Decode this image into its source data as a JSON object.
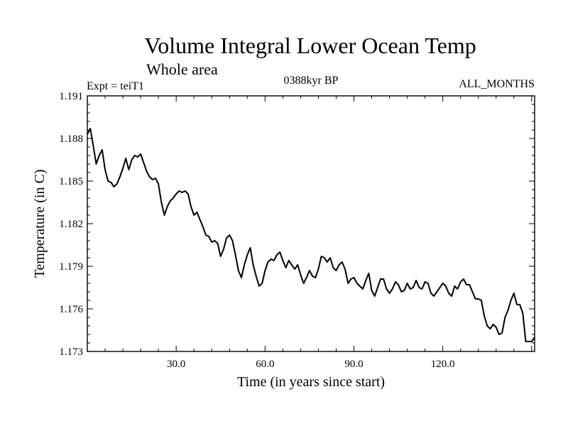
{
  "chart_data": {
    "type": "line",
    "title": "Volume Integral Lower Ocean Temp",
    "subtitle": "Whole area",
    "left_label": "Expt = teiT1",
    "center_label": "0388kyr BP",
    "right_label": "ALL_MONTHS",
    "xlabel": "Time (in years since start)",
    "ylabel": "Temperature (in C)",
    "xlim": [
      0,
      151
    ],
    "ylim": [
      1.173,
      1.191
    ],
    "x_ticks": [
      30,
      60,
      90,
      120
    ],
    "x_tick_labels": [
      "30.0",
      "60.0",
      "90.0",
      "120.0"
    ],
    "y_ticks": [
      1.173,
      1.176,
      1.179,
      1.182,
      1.185,
      1.188,
      1.191
    ],
    "y_tick_labels": [
      "1.173",
      "1.176",
      "1.179",
      "1.182",
      "1.185",
      "1.188",
      "1.191"
    ],
    "grid": false,
    "series": [
      {
        "name": "Volume integral lower ocean temperature",
        "color": "#000000",
        "x": [
          0,
          1,
          2,
          3,
          4,
          5,
          6,
          7,
          8,
          9,
          10,
          11,
          12,
          13,
          14,
          15,
          16,
          17,
          18,
          19,
          20,
          21,
          22,
          23,
          24,
          25,
          26,
          27,
          28,
          29,
          30,
          31,
          32,
          33,
          34,
          35,
          36,
          37,
          38,
          39,
          40,
          41,
          42,
          43,
          44,
          45,
          46,
          47,
          48,
          49,
          50,
          51,
          52,
          53,
          54,
          55,
          56,
          57,
          58,
          59,
          60,
          61,
          62,
          63,
          64,
          65,
          66,
          67,
          68,
          69,
          70,
          71,
          72,
          73,
          74,
          75,
          76,
          77,
          78,
          79,
          80,
          81,
          82,
          83,
          84,
          85,
          86,
          87,
          88,
          89,
          90,
          91,
          92,
          93,
          94,
          95,
          96,
          97,
          98,
          99,
          100,
          101,
          102,
          103,
          104,
          105,
          106,
          107,
          108,
          109,
          110,
          111,
          112,
          113,
          114,
          115,
          116,
          117,
          118,
          119,
          120,
          121,
          122,
          123,
          124,
          125,
          126,
          127,
          128,
          129,
          130,
          131,
          132,
          133,
          134,
          135,
          136,
          137,
          138,
          139,
          140,
          141,
          142,
          143,
          144,
          145,
          146,
          147,
          148,
          149,
          150,
          151
        ],
        "values": [
          1.1883,
          1.1887,
          1.1875,
          1.1862,
          1.1868,
          1.1872,
          1.1858,
          1.185,
          1.1849,
          1.1846,
          1.1848,
          1.1853,
          1.1859,
          1.1866,
          1.1858,
          1.1865,
          1.1868,
          1.1867,
          1.1869,
          1.1863,
          1.1857,
          1.1853,
          1.1851,
          1.1852,
          1.1848,
          1.1835,
          1.1826,
          1.1832,
          1.1836,
          1.1838,
          1.1841,
          1.1843,
          1.1842,
          1.1843,
          1.1841,
          1.1832,
          1.1826,
          1.1828,
          1.1823,
          1.1818,
          1.1812,
          1.1811,
          1.1807,
          1.1808,
          1.1806,
          1.1797,
          1.1802,
          1.181,
          1.1812,
          1.1808,
          1.1798,
          1.1787,
          1.1782,
          1.1791,
          1.1798,
          1.1803,
          1.1791,
          1.1783,
          1.1776,
          1.1778,
          1.1787,
          1.1793,
          1.1795,
          1.1794,
          1.1798,
          1.18,
          1.1794,
          1.1789,
          1.1794,
          1.1791,
          1.1788,
          1.1791,
          1.1784,
          1.1778,
          1.1782,
          1.1787,
          1.1783,
          1.1782,
          1.1788,
          1.1797,
          1.1796,
          1.1793,
          1.1796,
          1.1789,
          1.1787,
          1.1791,
          1.1793,
          1.1788,
          1.1778,
          1.1781,
          1.1782,
          1.1778,
          1.1776,
          1.1774,
          1.178,
          1.1785,
          1.1773,
          1.1769,
          1.1775,
          1.1781,
          1.1781,
          1.1774,
          1.1771,
          1.1774,
          1.1779,
          1.1777,
          1.1772,
          1.1773,
          1.1778,
          1.1774,
          1.1775,
          1.178,
          1.1775,
          1.1774,
          1.1779,
          1.1778,
          1.1771,
          1.1769,
          1.1772,
          1.1775,
          1.1778,
          1.1776,
          1.1771,
          1.1769,
          1.1776,
          1.1774,
          1.1779,
          1.1781,
          1.1777,
          1.1777,
          1.1772,
          1.1767,
          1.1767,
          1.1766,
          1.1755,
          1.1748,
          1.1746,
          1.1749,
          1.1747,
          1.1742,
          1.1743,
          1.1754,
          1.1759,
          1.1766,
          1.1771,
          1.1763,
          1.1763,
          1.1757,
          1.1737,
          1.1737,
          1.1737,
          1.174
        ]
      }
    ]
  }
}
